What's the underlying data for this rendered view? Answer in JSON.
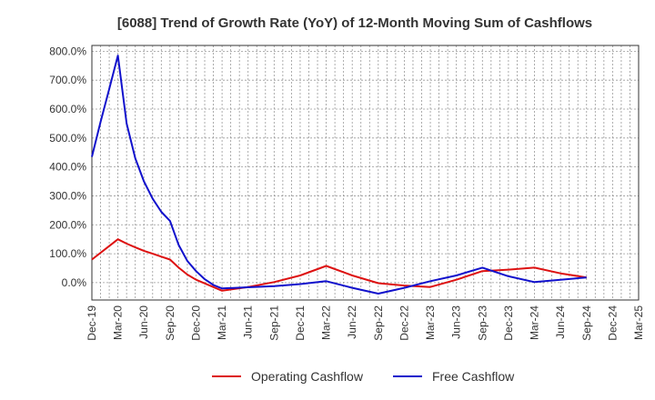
{
  "chart_data": {
    "type": "line",
    "title": "[6088]  Trend of Growth Rate (YoY) of 12-Month Moving Sum of Cashflows",
    "xlabel": "",
    "ylabel": "",
    "ylim": [
      -60,
      820
    ],
    "y_ticks": [
      {
        "value": 0,
        "label": "0.0%"
      },
      {
        "value": 100,
        "label": "100.0%"
      },
      {
        "value": 200,
        "label": "200.0%"
      },
      {
        "value": 300,
        "label": "300.0%"
      },
      {
        "value": 400,
        "label": "400.0%"
      },
      {
        "value": 500,
        "label": "500.0%"
      },
      {
        "value": 600,
        "label": "600.0%"
      },
      {
        "value": 700,
        "label": "700.0%"
      },
      {
        "value": 800,
        "label": "800.0%"
      }
    ],
    "x_labels": [
      "Dec-19",
      "Mar-20",
      "Jun-20",
      "Sep-20",
      "Dec-20",
      "Mar-21",
      "Jun-21",
      "Sep-21",
      "Dec-21",
      "Mar-22",
      "Jun-22",
      "Sep-22",
      "Dec-22",
      "Mar-23",
      "Jun-23",
      "Sep-23",
      "Dec-23",
      "Mar-24",
      "Jun-24",
      "Sep-24",
      "Dec-24",
      "Mar-25"
    ],
    "grid": true,
    "legend_position": "bottom",
    "series": [
      {
        "name": "Operating Cashflow",
        "color": "#dd1111",
        "points": [
          {
            "x": "Dec-19",
            "y": 80
          },
          {
            "x": "Mar-20",
            "y": 150
          },
          {
            "x": "Apr-20",
            "y": 135
          },
          {
            "x": "May-20",
            "y": 122
          },
          {
            "x": "Jun-20",
            "y": 110
          },
          {
            "x": "Jul-20",
            "y": 100
          },
          {
            "x": "Aug-20",
            "y": 90
          },
          {
            "x": "Sep-20",
            "y": 80
          },
          {
            "x": "Oct-20",
            "y": 52
          },
          {
            "x": "Nov-20",
            "y": 28
          },
          {
            "x": "Dec-20",
            "y": 10
          },
          {
            "x": "Mar-21",
            "y": -28
          },
          {
            "x": "Jun-21",
            "y": -15
          },
          {
            "x": "Sep-21",
            "y": 2
          },
          {
            "x": "Dec-21",
            "y": 25
          },
          {
            "x": "Mar-22",
            "y": 58
          },
          {
            "x": "Jun-22",
            "y": 25
          },
          {
            "x": "Sep-22",
            "y": -2
          },
          {
            "x": "Dec-22",
            "y": -10
          },
          {
            "x": "Mar-23",
            "y": -15
          },
          {
            "x": "Jun-23",
            "y": 10
          },
          {
            "x": "Sep-23",
            "y": 40
          },
          {
            "x": "Dec-23",
            "y": 45
          },
          {
            "x": "Mar-24",
            "y": 52
          },
          {
            "x": "Jun-24",
            "y": 32
          },
          {
            "x": "Sep-24",
            "y": 18
          }
        ]
      },
      {
        "name": "Free Cashflow",
        "color": "#1111cc",
        "points": [
          {
            "x": "Dec-19",
            "y": 435
          },
          {
            "x": "Jan-20",
            "y": 555
          },
          {
            "x": "Feb-20",
            "y": 670
          },
          {
            "x": "Mar-20",
            "y": 785
          },
          {
            "x": "Apr-20",
            "y": 550
          },
          {
            "x": "May-20",
            "y": 430
          },
          {
            "x": "Jun-20",
            "y": 350
          },
          {
            "x": "Jul-20",
            "y": 290
          },
          {
            "x": "Aug-20",
            "y": 245
          },
          {
            "x": "Sep-20",
            "y": 213
          },
          {
            "x": "Oct-20",
            "y": 130
          },
          {
            "x": "Nov-20",
            "y": 75
          },
          {
            "x": "Dec-20",
            "y": 40
          },
          {
            "x": "Jan-21",
            "y": 12
          },
          {
            "x": "Feb-21",
            "y": -8
          },
          {
            "x": "Mar-21",
            "y": -20
          },
          {
            "x": "Jun-21",
            "y": -16
          },
          {
            "x": "Sep-21",
            "y": -12
          },
          {
            "x": "Dec-21",
            "y": -5
          },
          {
            "x": "Mar-22",
            "y": 5
          },
          {
            "x": "Jun-22",
            "y": -18
          },
          {
            "x": "Sep-22",
            "y": -38
          },
          {
            "x": "Dec-22",
            "y": -18
          },
          {
            "x": "Mar-23",
            "y": 5
          },
          {
            "x": "Jun-23",
            "y": 25
          },
          {
            "x": "Sep-23",
            "y": 52
          },
          {
            "x": "Dec-23",
            "y": 22
          },
          {
            "x": "Mar-24",
            "y": 2
          },
          {
            "x": "Jun-24",
            "y": 10
          },
          {
            "x": "Sep-24",
            "y": 18
          }
        ]
      }
    ]
  }
}
